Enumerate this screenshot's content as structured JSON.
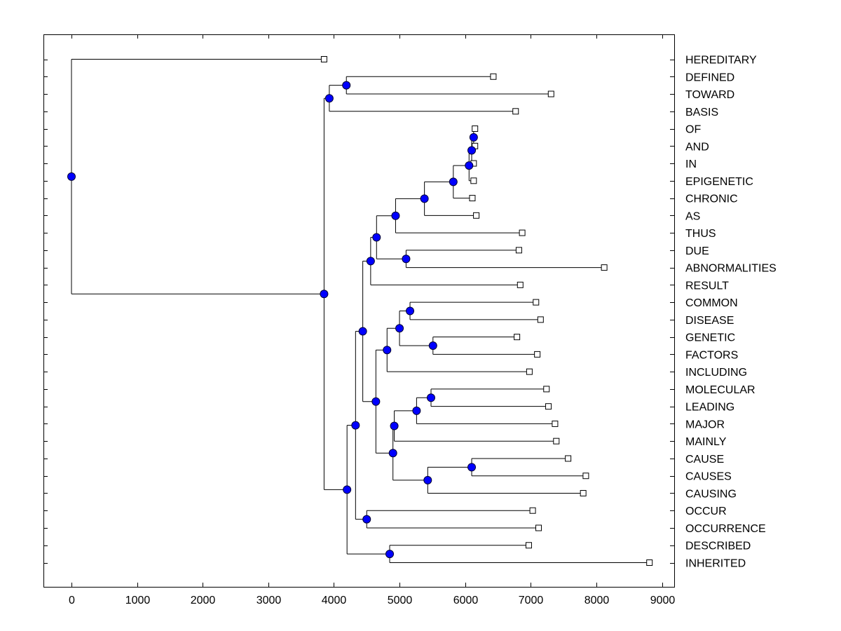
{
  "chart_data": {
    "type": "dendrogram",
    "orientation": "horizontal",
    "title": "",
    "xlabel": "",
    "ylabel": "",
    "xlim": [
      -420,
      9200
    ],
    "xticks": [
      0,
      1000,
      2000,
      3000,
      4000,
      5000,
      6000,
      7000,
      8000,
      9000
    ],
    "grid": false,
    "legend": "none",
    "colors": {
      "node_fill": "#0000ff",
      "node_stroke": "#000033",
      "leaf_fill": "#ffffff",
      "line": "#000000"
    },
    "leaves": [
      {
        "id": "HEREDITARY",
        "label": "HEREDITARY",
        "x": 3850
      },
      {
        "id": "DEFINED",
        "label": "DEFINED",
        "x": 6430
      },
      {
        "id": "TOWARD",
        "label": "TOWARD",
        "x": 7310
      },
      {
        "id": "BASIS",
        "label": "BASIS",
        "x": 6770
      },
      {
        "id": "OF",
        "label": "OF",
        "x": 6150
      },
      {
        "id": "AND",
        "label": "AND",
        "x": 6150
      },
      {
        "id": "IN",
        "label": "IN",
        "x": 6130
      },
      {
        "id": "EPIGENETIC",
        "label": "EPIGENETIC",
        "x": 6130
      },
      {
        "id": "CHRONIC",
        "label": "CHRONIC",
        "x": 6110
      },
      {
        "id": "AS",
        "label": "AS",
        "x": 6170
      },
      {
        "id": "THUS",
        "label": "THUS",
        "x": 6870
      },
      {
        "id": "DUE",
        "label": "DUE",
        "x": 6820
      },
      {
        "id": "ABNORMALITIES",
        "label": "ABNORMALITIES",
        "x": 8120
      },
      {
        "id": "RESULT",
        "label": "RESULT",
        "x": 6840
      },
      {
        "id": "COMMON",
        "label": "COMMON",
        "x": 7080
      },
      {
        "id": "DISEASE",
        "label": "DISEASE",
        "x": 7150
      },
      {
        "id": "GENETIC",
        "label": "GENETIC",
        "x": 6790
      },
      {
        "id": "FACTORS",
        "label": "FACTORS",
        "x": 7100
      },
      {
        "id": "INCLUDING",
        "label": "INCLUDING",
        "x": 6980
      },
      {
        "id": "MOLECULAR",
        "label": "MOLECULAR",
        "x": 7240
      },
      {
        "id": "LEADING",
        "label": "LEADING",
        "x": 7270
      },
      {
        "id": "MAJOR",
        "label": "MAJOR",
        "x": 7370
      },
      {
        "id": "MAINLY",
        "label": "MAINLY",
        "x": 7390
      },
      {
        "id": "CAUSE",
        "label": "CAUSE",
        "x": 7570
      },
      {
        "id": "CAUSES",
        "label": "CAUSES",
        "x": 7840
      },
      {
        "id": "CAUSING",
        "label": "CAUSING",
        "x": 7800
      },
      {
        "id": "OCCUR",
        "label": "OCCUR",
        "x": 7030
      },
      {
        "id": "OCCURRENCE",
        "label": "OCCURRENCE",
        "x": 7120
      },
      {
        "id": "DESCRIBED",
        "label": "DESCRIBED",
        "x": 6970
      },
      {
        "id": "INHERITED",
        "label": "INHERITED",
        "x": 8810
      }
    ],
    "nodes": [
      {
        "id": "n_of_and",
        "x": 6130,
        "children": [
          "OF",
          "AND"
        ]
      },
      {
        "id": "n_ofand_in",
        "x": 6100,
        "children": [
          "n_of_and",
          "IN"
        ]
      },
      {
        "id": "n_epi",
        "x": 6060,
        "children": [
          "n_ofand_in",
          "EPIGENETIC"
        ]
      },
      {
        "id": "n_chronic",
        "x": 5820,
        "children": [
          "n_epi",
          "CHRONIC"
        ]
      },
      {
        "id": "n_as",
        "x": 5380,
        "children": [
          "n_chronic",
          "AS"
        ]
      },
      {
        "id": "n_thus",
        "x": 4940,
        "children": [
          "n_as",
          "THUS"
        ]
      },
      {
        "id": "n_due_abn",
        "x": 5100,
        "children": [
          "DUE",
          "ABNORMALITIES"
        ]
      },
      {
        "id": "n_tda",
        "x": 4650,
        "children": [
          "n_thus",
          "n_due_abn"
        ]
      },
      {
        "id": "n_result",
        "x": 4560,
        "children": [
          "n_tda",
          "RESULT"
        ]
      },
      {
        "id": "n_com_dis",
        "x": 5160,
        "children": [
          "COMMON",
          "DISEASE"
        ]
      },
      {
        "id": "n_gen_fac",
        "x": 5510,
        "children": [
          "GENETIC",
          "FACTORS"
        ]
      },
      {
        "id": "n_cdgf",
        "x": 5000,
        "children": [
          "n_com_dis",
          "n_gen_fac"
        ]
      },
      {
        "id": "n_including",
        "x": 4810,
        "children": [
          "n_cdgf",
          "INCLUDING"
        ]
      },
      {
        "id": "n_mol_lead",
        "x": 5480,
        "children": [
          "MOLECULAR",
          "LEADING"
        ]
      },
      {
        "id": "n_major",
        "x": 5260,
        "children": [
          "n_mol_lead",
          "MAJOR"
        ]
      },
      {
        "id": "n_mainly",
        "x": 4920,
        "children": [
          "n_major",
          "MAINLY"
        ]
      },
      {
        "id": "n_cause_causes",
        "x": 6100,
        "children": [
          "CAUSE",
          "CAUSES"
        ]
      },
      {
        "id": "n_causing",
        "x": 5430,
        "children": [
          "n_cause_causes",
          "CAUSING"
        ]
      },
      {
        "id": "n_cgroup",
        "x": 4900,
        "children": [
          "n_mainly",
          "n_causing"
        ]
      },
      {
        "id": "n_fgroup",
        "x": 4640,
        "children": [
          "n_including",
          "n_cgroup"
        ]
      },
      {
        "id": "n_mid",
        "x": 4440,
        "children": [
          "n_result",
          "n_fgroup"
        ]
      },
      {
        "id": "n_occ",
        "x": 4500,
        "children": [
          "OCCUR",
          "OCCURRENCE"
        ]
      },
      {
        "id": "n_midocc",
        "x": 4330,
        "children": [
          "n_mid",
          "n_occ"
        ]
      },
      {
        "id": "n_desc_inh",
        "x": 4850,
        "children": [
          "DESCRIBED",
          "INHERITED"
        ]
      },
      {
        "id": "n_lower",
        "x": 4200,
        "children": [
          "n_midocc",
          "n_desc_inh"
        ]
      },
      {
        "id": "n_def_tow",
        "x": 4190,
        "children": [
          "DEFINED",
          "TOWARD"
        ]
      },
      {
        "id": "n_basis",
        "x": 3930,
        "children": [
          "n_def_tow",
          "BASIS"
        ]
      },
      {
        "id": "n_big",
        "x": 3850,
        "children": [
          "n_basis",
          "n_lower"
        ]
      },
      {
        "id": "n_root",
        "x": 0,
        "children": [
          "HEREDITARY",
          "n_big"
        ]
      }
    ]
  }
}
